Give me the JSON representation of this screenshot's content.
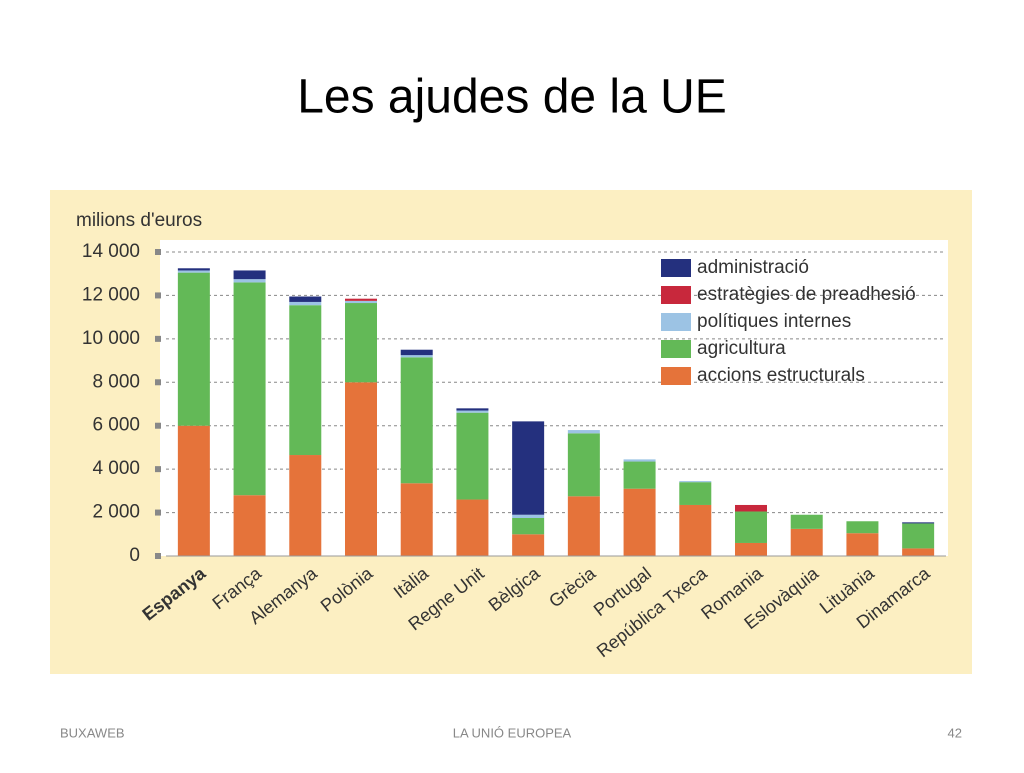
{
  "slide": {
    "title": "Les ajudes de la UE",
    "footer_left": "BUXAWEB",
    "footer_center": "LA UNIÓ EUROPEA",
    "page_number": "42"
  },
  "chart_data": {
    "type": "stacked_bar",
    "ylabel": "milions d'euros",
    "categories": [
      "Espanya",
      "França",
      "Alemanya",
      "Polònia",
      "Itàlia",
      "Regne Unit",
      "Bèlgica",
      "Grècia",
      "Portugal",
      "República Txeca",
      "Romania",
      "Eslovàquia",
      "Lituània",
      "Dinamarca"
    ],
    "series": [
      {
        "name": "accions estructurals",
        "color": "#e5733a",
        "values": [
          6000,
          2800,
          4650,
          8000,
          3350,
          2600,
          1000,
          2750,
          3100,
          2350,
          600,
          1250,
          1050,
          350
        ]
      },
      {
        "name": "agricultura",
        "color": "#63b957",
        "values": [
          7050,
          9800,
          6900,
          3650,
          5800,
          4000,
          750,
          2900,
          1250,
          1050,
          1450,
          650,
          550,
          1150
        ]
      },
      {
        "name": "polítiques internes",
        "color": "#9cc3e4",
        "values": [
          100,
          150,
          150,
          100,
          100,
          100,
          150,
          150,
          100,
          50,
          0,
          0,
          0,
          0
        ]
      },
      {
        "name": "estratègies de preadhesió",
        "color": "#c8283c",
        "values": [
          0,
          0,
          0,
          100,
          0,
          0,
          0,
          0,
          0,
          0,
          300,
          0,
          0,
          0
        ]
      },
      {
        "name": "administració",
        "color": "#24307e",
        "values": [
          100,
          400,
          250,
          0,
          250,
          100,
          4300,
          0,
          0,
          0,
          0,
          0,
          0,
          50
        ]
      }
    ],
    "ylim": [
      0,
      14000
    ],
    "yticks": [
      0,
      {
        "value": 2000,
        "label": "2 000"
      },
      {
        "value": 4000,
        "label": "4 000"
      },
      {
        "value": 6000,
        "label": "6 000"
      },
      {
        "value": 8000,
        "label": "8 000"
      },
      {
        "value": 10000,
        "label": "10 000"
      },
      {
        "value": 12000,
        "label": "12 000"
      },
      {
        "value": 14000,
        "label": "14 000"
      }
    ],
    "grid": true
  }
}
